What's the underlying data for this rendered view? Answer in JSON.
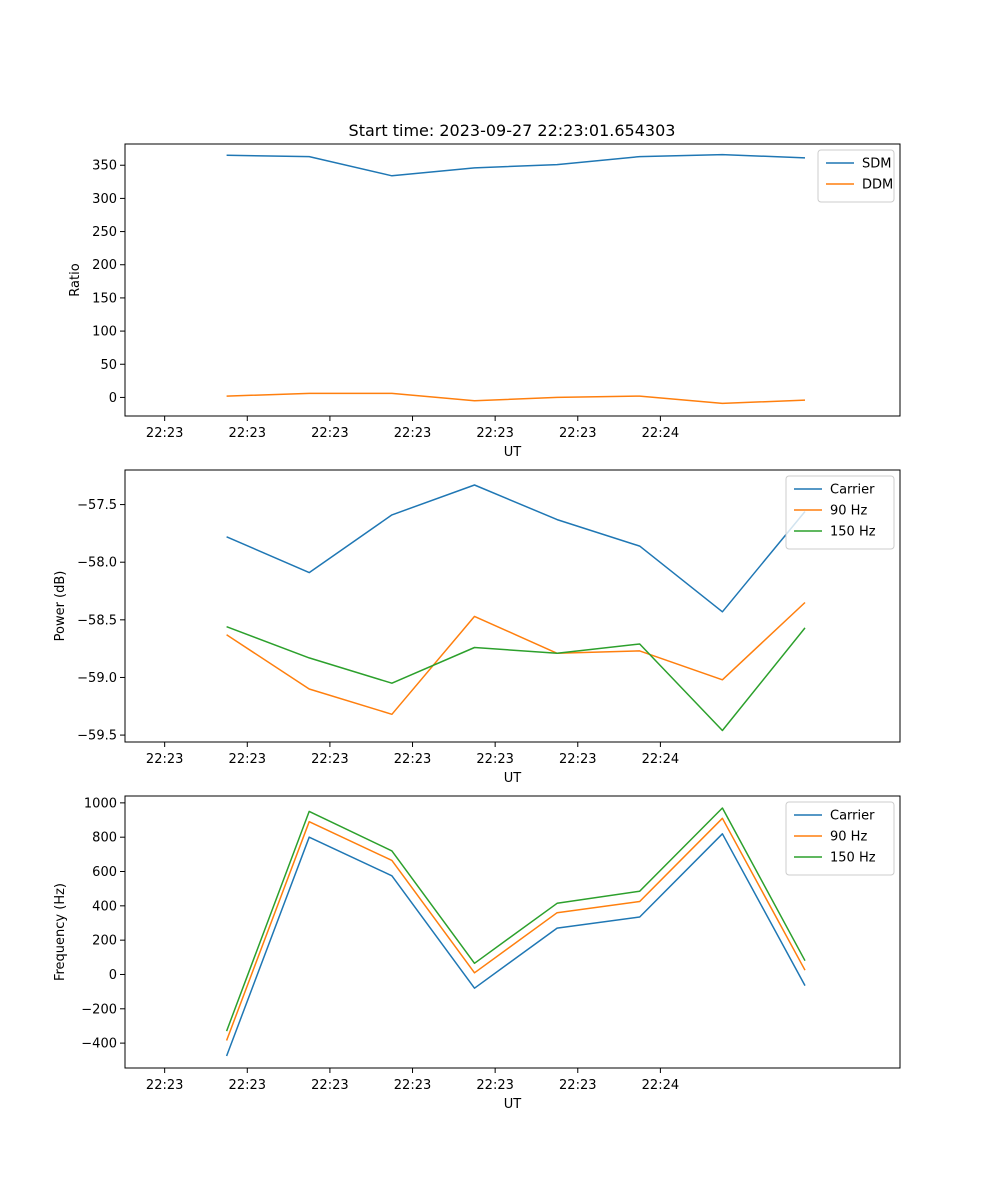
{
  "colors": {
    "blue": "#1f77b4",
    "orange": "#ff7f0e",
    "green": "#2ca02c"
  },
  "chart_data": [
    {
      "type": "line",
      "title": "Start time: 2023-09-27 22:23:01.654303",
      "xlabel": "UT",
      "ylabel": "Ratio",
      "x_tick_labels": [
        "22:23",
        "22:23",
        "22:23",
        "22:23",
        "22:23",
        "22:23",
        "22:24"
      ],
      "xlim": [
        -0.48,
        8.9
      ],
      "ylim": [
        -28,
        382
      ],
      "y_ticks": [
        0,
        50,
        100,
        150,
        200,
        250,
        300,
        350
      ],
      "y_tick_labels": [
        "0",
        "50",
        "100",
        "150",
        "200",
        "250",
        "300",
        "350"
      ],
      "x": [
        0.75,
        1.75,
        2.75,
        3.75,
        4.75,
        5.75,
        6.75,
        7.75
      ],
      "legend": "top-right",
      "series": [
        {
          "name": "SDM",
          "color": "#1f77b4",
          "values": [
            365,
            363,
            334,
            346,
            351,
            363,
            366,
            361
          ]
        },
        {
          "name": "DDM",
          "color": "#ff7f0e",
          "values": [
            2,
            6,
            6,
            -5,
            0,
            2,
            -9,
            -4
          ]
        }
      ]
    },
    {
      "type": "line",
      "title": "",
      "xlabel": "UT",
      "ylabel": "Power (dB)",
      "x_tick_labels": [
        "22:23",
        "22:23",
        "22:23",
        "22:23",
        "22:23",
        "22:23",
        "22:24"
      ],
      "xlim": [
        -0.48,
        8.9
      ],
      "ylim": [
        -59.56,
        -57.2
      ],
      "y_ticks": [
        -59.5,
        -59.0,
        -58.5,
        -58.0,
        -57.5
      ],
      "y_tick_labels": [
        "−59.5",
        "−59.0",
        "−58.5",
        "−58.0",
        "−57.5"
      ],
      "x": [
        0.75,
        1.75,
        2.75,
        3.75,
        4.75,
        5.75,
        6.75,
        7.75
      ],
      "legend": "top-right",
      "series": [
        {
          "name": "Carrier",
          "color": "#1f77b4",
          "values": [
            -57.78,
            -58.09,
            -57.59,
            -57.33,
            -57.63,
            -57.86,
            -58.43,
            -57.56
          ]
        },
        {
          "name": "90 Hz",
          "color": "#ff7f0e",
          "values": [
            -58.63,
            -59.1,
            -59.32,
            -58.47,
            -58.79,
            -58.77,
            -59.02,
            -58.35
          ]
        },
        {
          "name": "150 Hz",
          "color": "#2ca02c",
          "values": [
            -58.56,
            -58.83,
            -59.05,
            -58.74,
            -58.79,
            -58.71,
            -59.46,
            -58.57
          ]
        }
      ]
    },
    {
      "type": "line",
      "title": "",
      "xlabel": "UT",
      "ylabel": "Frequency (Hz)",
      "x_tick_labels": [
        "22:23",
        "22:23",
        "22:23",
        "22:23",
        "22:23",
        "22:23",
        "22:24"
      ],
      "xlim": [
        -0.48,
        8.9
      ],
      "ylim": [
        -545,
        1040
      ],
      "y_ticks": [
        -400,
        -200,
        0,
        200,
        400,
        600,
        800,
        1000
      ],
      "y_tick_labels": [
        "−400",
        "−200",
        "0",
        "200",
        "400",
        "600",
        "800",
        "1000"
      ],
      "x": [
        0.75,
        1.75,
        2.75,
        3.75,
        4.75,
        5.75,
        6.75,
        7.75
      ],
      "legend": "top-right",
      "series": [
        {
          "name": "Carrier",
          "color": "#1f77b4",
          "values": [
            -475,
            800,
            575,
            -80,
            270,
            335,
            820,
            -65
          ]
        },
        {
          "name": "90 Hz",
          "color": "#ff7f0e",
          "values": [
            -385,
            890,
            665,
            10,
            360,
            425,
            910,
            25
          ]
        },
        {
          "name": "150 Hz",
          "color": "#2ca02c",
          "values": [
            -330,
            950,
            720,
            65,
            415,
            485,
            970,
            80
          ]
        }
      ]
    }
  ]
}
